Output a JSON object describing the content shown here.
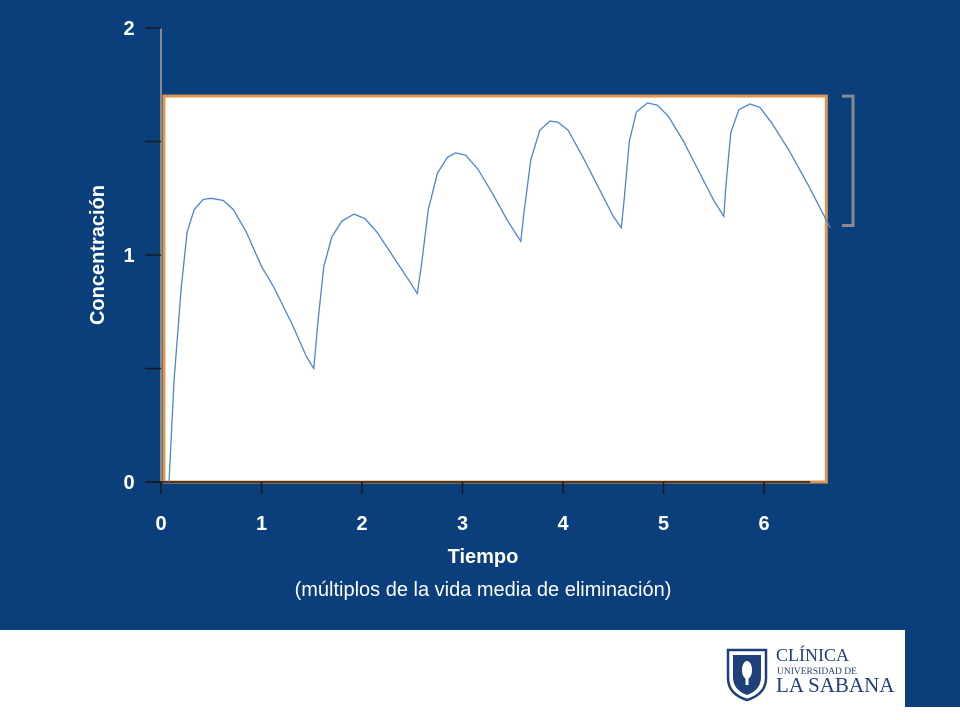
{
  "colors": {
    "slide_background": "#0a3f7c",
    "plot_background": "#ffffff",
    "plot_border": "#e0984f",
    "curve": "#4a86d4",
    "axis": "#1a1a1a",
    "bracket": "#8a8a8a",
    "logo": "#1f3f7a"
  },
  "chart_data": {
    "type": "line",
    "title": "",
    "xlabel": "Tiempo",
    "xlabel_sub": "(múltiplos de la vida media de eliminación)",
    "ylabel": "Concentración",
    "xlim": [
      0,
      6.6
    ],
    "ylim": [
      0,
      2
    ],
    "x_ticks": [
      0,
      1,
      2,
      3,
      4,
      5,
      6
    ],
    "x_tick_labels": [
      "0",
      "1",
      "2",
      "3",
      "4",
      "5",
      "6"
    ],
    "y_ticks": [
      0,
      0.5,
      1,
      1.5,
      2
    ],
    "y_tick_labels": [
      "0",
      "",
      "1",
      "",
      "2"
    ],
    "highlight_range": {
      "y_min": 0,
      "y_max": 1.7
    },
    "bracket_range": {
      "y_min": 1.13,
      "y_max": 1.7
    },
    "grid": false,
    "series": [
      {
        "values": [
          [
            0.08,
            0.0
          ],
          [
            0.13,
            0.45
          ],
          [
            0.2,
            0.85
          ],
          [
            0.26,
            1.1
          ],
          [
            0.33,
            1.2
          ],
          [
            0.42,
            1.245
          ],
          [
            0.5,
            1.25
          ],
          [
            0.62,
            1.24
          ],
          [
            0.72,
            1.2
          ],
          [
            0.85,
            1.1
          ],
          [
            1.0,
            0.95
          ],
          [
            1.12,
            0.86
          ],
          [
            1.3,
            0.7
          ],
          [
            1.45,
            0.55
          ],
          [
            1.52,
            0.5
          ],
          [
            1.56,
            0.7
          ],
          [
            1.62,
            0.95
          ],
          [
            1.7,
            1.08
          ],
          [
            1.8,
            1.15
          ],
          [
            1.92,
            1.18
          ],
          [
            2.03,
            1.16
          ],
          [
            2.15,
            1.1
          ],
          [
            2.3,
            1.0
          ],
          [
            2.45,
            0.9
          ],
          [
            2.55,
            0.83
          ],
          [
            2.59,
            0.95
          ],
          [
            2.66,
            1.2
          ],
          [
            2.75,
            1.36
          ],
          [
            2.85,
            1.43
          ],
          [
            2.93,
            1.45
          ],
          [
            3.03,
            1.44
          ],
          [
            3.15,
            1.38
          ],
          [
            3.3,
            1.27
          ],
          [
            3.45,
            1.15
          ],
          [
            3.58,
            1.06
          ],
          [
            3.61,
            1.18
          ],
          [
            3.68,
            1.42
          ],
          [
            3.77,
            1.55
          ],
          [
            3.87,
            1.59
          ],
          [
            3.95,
            1.585
          ],
          [
            4.05,
            1.55
          ],
          [
            4.2,
            1.43
          ],
          [
            4.35,
            1.3
          ],
          [
            4.5,
            1.17
          ],
          [
            4.58,
            1.12
          ],
          [
            4.61,
            1.25
          ],
          [
            4.66,
            1.5
          ],
          [
            4.73,
            1.63
          ],
          [
            4.84,
            1.67
          ],
          [
            4.94,
            1.66
          ],
          [
            5.05,
            1.61
          ],
          [
            5.2,
            1.5
          ],
          [
            5.35,
            1.37
          ],
          [
            5.5,
            1.24
          ],
          [
            5.6,
            1.17
          ],
          [
            5.62,
            1.3
          ],
          [
            5.67,
            1.54
          ],
          [
            5.75,
            1.64
          ],
          [
            5.86,
            1.665
          ],
          [
            5.96,
            1.65
          ],
          [
            6.08,
            1.58
          ],
          [
            6.25,
            1.46
          ],
          [
            6.45,
            1.3
          ],
          [
            6.66,
            1.12
          ]
        ]
      }
    ]
  },
  "logo": {
    "line1": "CLÍNICA",
    "line2": "UNIVERSIDAD DE",
    "line3": "LA SABANA",
    "seal_text": "QUAERERE VERUM"
  }
}
